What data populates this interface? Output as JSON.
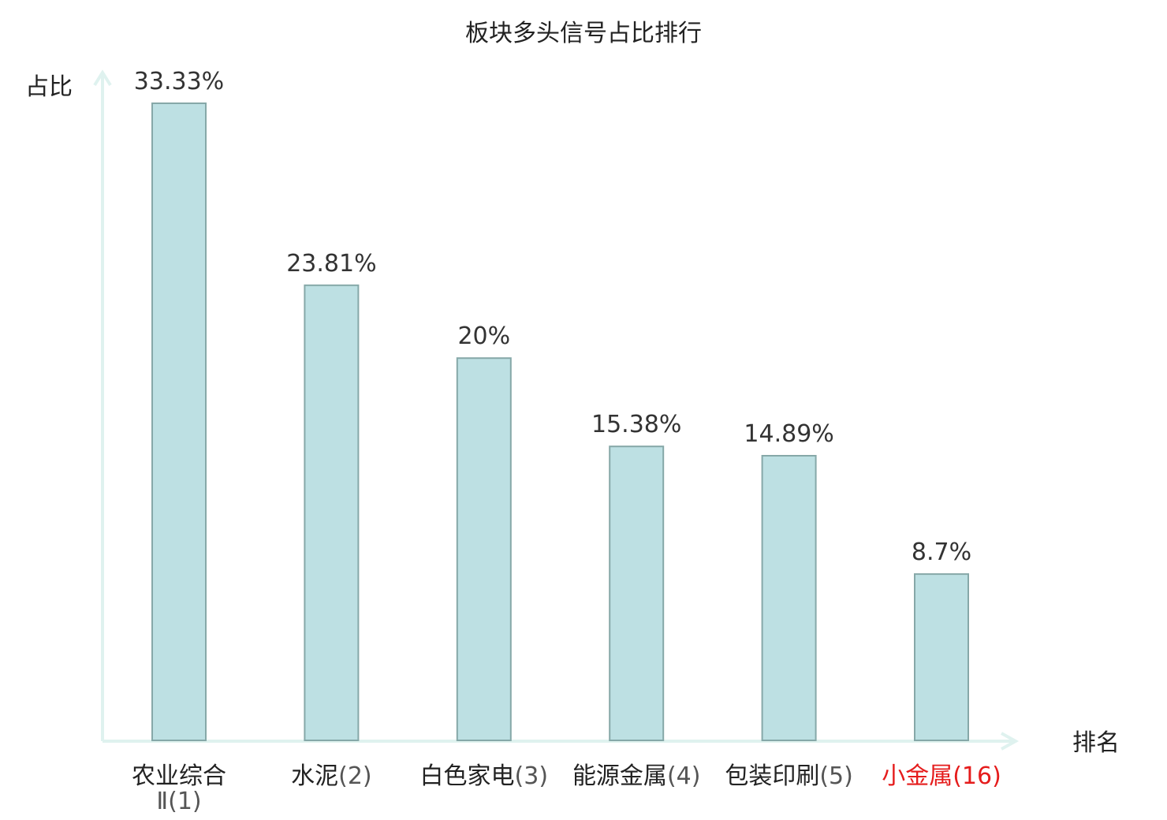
{
  "chart_data": {
    "type": "bar",
    "title": "板块多头信号占比排行",
    "ylabel": "占比",
    "xlabel": "排名",
    "ylim": [
      0,
      35
    ],
    "categories": [
      {
        "name_lines": [
          "农业综合",
          "Ⅱ"
        ],
        "rank": "(1)",
        "highlight": false
      },
      {
        "name_lines": [
          "水泥"
        ],
        "rank": "(2)",
        "highlight": false
      },
      {
        "name_lines": [
          "白色家电"
        ],
        "rank": "(3)",
        "highlight": false
      },
      {
        "name_lines": [
          "能源金属"
        ],
        "rank": "(4)",
        "highlight": false
      },
      {
        "name_lines": [
          "包装印刷"
        ],
        "rank": "(5)",
        "highlight": false
      },
      {
        "name_lines": [
          "小金属"
        ],
        "rank": "(16)",
        "highlight": true
      }
    ],
    "values": [
      33.33,
      23.81,
      20,
      15.38,
      14.89,
      8.7
    ],
    "value_labels": [
      "33.33%",
      "23.81%",
      "20%",
      "15.38%",
      "14.89%",
      "8.7%"
    ],
    "grid": false,
    "legend": "none"
  },
  "colors": {
    "bar_fill": "#bde0e3",
    "bar_stroke": "#86a8a8",
    "axis": "#dff2ef",
    "text": "#222222",
    "rank_text": "#555555",
    "highlight": "#e51c1c",
    "value_label": "#333333"
  }
}
